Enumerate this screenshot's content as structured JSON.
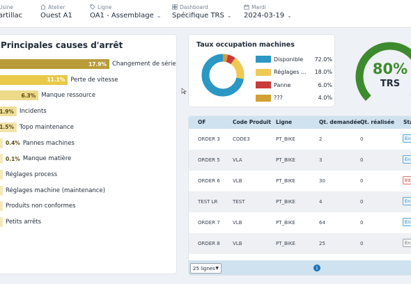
{
  "header": {
    "usine": {
      "label": "Usine",
      "value": "artillac"
    },
    "atelier": {
      "label": "Atelier",
      "value": "Ouest A1"
    },
    "ligne": {
      "label": "Ligne",
      "value": "OA1 - Assemblage"
    },
    "dashboard": {
      "label": "Dashboard",
      "value": "Spécifique TRS"
    },
    "date": {
      "label": "Mardi",
      "value": "2024-03-19"
    }
  },
  "causes": {
    "title": "Principales causes d'arrêt",
    "items": [
      {
        "label": "Changement de série",
        "pct": "17.9%",
        "value": 17.9,
        "color": "#b99b3a",
        "inside": true
      },
      {
        "label": "Perte de vitesse",
        "pct": "11.1%",
        "value": 11.1,
        "color": "#e9c84a",
        "inside": true
      },
      {
        "label": "Manque ressource",
        "pct": "6.3%",
        "value": 6.3,
        "color": "#ecd98a",
        "inside": true
      },
      {
        "label": "Incidents",
        "pct": "1.9%",
        "value": 1.9,
        "color": "#efdf9c",
        "inside": true
      },
      {
        "label": "Topo maintenance",
        "pct": "1.5%",
        "value": 1.5,
        "color": "#f2e3ab",
        "inside": true
      },
      {
        "label": "Pannes machines",
        "pct": "0.4%",
        "value": 0.4,
        "color": "#f4e7b6",
        "inside": false
      },
      {
        "label": "Manque matière",
        "pct": "0.1%",
        "value": 0.1,
        "color": "#f5e9bb",
        "inside": false
      },
      {
        "label": "Réglages process",
        "pct": "",
        "value": 0,
        "color": "#f5e9bb",
        "inside": false
      },
      {
        "label": "Réglages machine (maintenance)",
        "pct": "",
        "value": 0,
        "color": "#f5e9bb",
        "inside": false
      },
      {
        "label": "Produits non conformes",
        "pct": "",
        "value": 0,
        "color": "#f5e9bb",
        "inside": false
      },
      {
        "label": "Petits arrêts",
        "pct": "",
        "value": 0,
        "color": "#f5e9bb",
        "inside": false
      }
    ]
  },
  "occupation": {
    "title": "Taux occupation machines",
    "items": [
      {
        "label": "Disponible",
        "value": "72.0%",
        "fraction": 0.72,
        "color": "#2a97c4"
      },
      {
        "label": "Réglages ...",
        "value": "18.0%",
        "fraction": 0.18,
        "color": "#efc954"
      },
      {
        "label": "Panne",
        "value": "6.0%",
        "fraction": 0.06,
        "color": "#c93a3a"
      },
      {
        "label": "???",
        "value": "4.0%",
        "fraction": 0.04,
        "color": "#d1a032"
      }
    ]
  },
  "trs": {
    "value": "80%",
    "label": "TRS",
    "fraction": 0.8,
    "color": "#3e8a2e"
  },
  "table": {
    "headers": {
      "of": "OF",
      "code": "Code Produit",
      "ligne": "Ligne",
      "qd": "Qt. demandée",
      "qr": "Qt. réalisée",
      "status": "Sta"
    },
    "rows": [
      {
        "of": "ORDER 3",
        "code": "CODE3",
        "ligne": "PT_BIKE",
        "qd": "2",
        "qr": "0",
        "status": "En",
        "tone": "blue"
      },
      {
        "of": "ORDER 5",
        "code": "VLA",
        "ligne": "PT_BIKE",
        "qd": "3",
        "qr": "0",
        "status": "En",
        "tone": "blue"
      },
      {
        "of": "ORDER 6",
        "code": "VLB",
        "ligne": "PT_BIKE",
        "qd": "30",
        "qr": "0",
        "status": "Int",
        "tone": "red"
      },
      {
        "of": "TEST LR",
        "code": "TEST",
        "ligne": "PT_BIKE",
        "qd": "4",
        "qr": "0",
        "status": "En",
        "tone": "blue"
      },
      {
        "of": "ORDER 7",
        "code": "VLB",
        "ligne": "PT_BIKE",
        "qd": "64",
        "qr": "0",
        "status": "En",
        "tone": "blue"
      },
      {
        "of": "ORDER 8",
        "code": "VLB",
        "ligne": "PT_BIKE",
        "qd": "25",
        "qr": "0",
        "status": "En",
        "tone": "gray"
      }
    ],
    "page_size": "25 lignes",
    "current_page": "1"
  },
  "icons": {
    "atelier": "home-icon",
    "ligne": "tag-icon",
    "dashboard": "dashboard-icon",
    "date": "calendar-icon",
    "chevron": "chevron-down-icon"
  }
}
